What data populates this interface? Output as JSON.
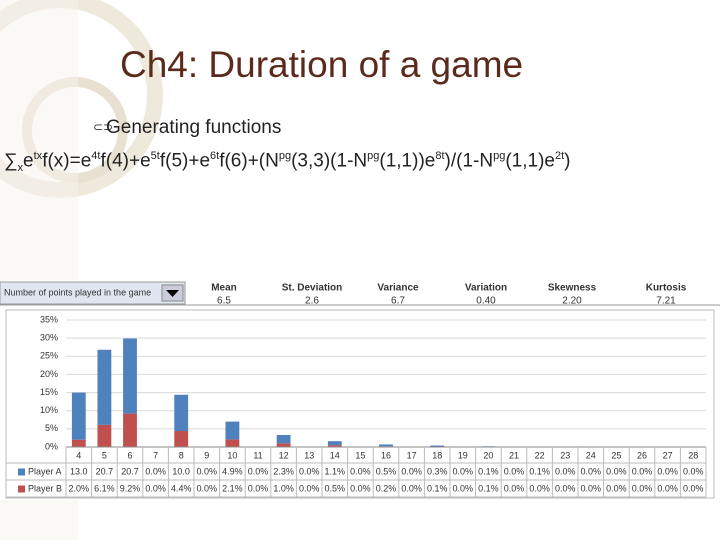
{
  "slide": {
    "title": "Ch4: Duration of a game",
    "bullet": "Generating functions",
    "formula": [
      {
        "text": "∑",
        "pos": "base"
      },
      {
        "text": "x",
        "pos": "sub"
      },
      {
        "text": "e",
        "pos": "base"
      },
      {
        "text": "tx",
        "pos": "sup"
      },
      {
        "text": "f(x)=e",
        "pos": "base"
      },
      {
        "text": "4t",
        "pos": "sup"
      },
      {
        "text": "f(4)+e",
        "pos": "base"
      },
      {
        "text": "5t",
        "pos": "sup"
      },
      {
        "text": "f(5)+e",
        "pos": "base"
      },
      {
        "text": "6t",
        "pos": "sup"
      },
      {
        "text": "f(6)+(N",
        "pos": "base"
      },
      {
        "text": "pg",
        "pos": "sup"
      },
      {
        "text": "(3,3)(1-N",
        "pos": "base"
      },
      {
        "text": "pg",
        "pos": "sup"
      },
      {
        "text": "(1,1))e",
        "pos": "base"
      },
      {
        "text": "8t",
        "pos": "sup"
      },
      {
        "text": ")/(1-N",
        "pos": "base"
      },
      {
        "text": "pg",
        "pos": "sup"
      },
      {
        "text": "(1,1)e",
        "pos": "base"
      },
      {
        "text": "2t",
        "pos": "sup"
      },
      {
        "text": ")",
        "pos": "base"
      }
    ]
  },
  "stats": {
    "dropdown": "Number of points played in the game",
    "headers": [
      "Mean",
      "St. Deviation",
      "Variance",
      "Variation",
      "Skewness",
      "Kurtosis"
    ],
    "values": [
      "6.5",
      "2.6",
      "6.7",
      "0.40",
      "2.20",
      "7.21"
    ]
  },
  "chart_data": {
    "type": "stacked_bar",
    "categories": [
      "4",
      "5",
      "6",
      "7",
      "8",
      "9",
      "10",
      "11",
      "12",
      "13",
      "14",
      "15",
      "16",
      "17",
      "18",
      "19",
      "20",
      "21",
      "22",
      "23",
      "24",
      "25",
      "26",
      "27",
      "28"
    ],
    "series": [
      {
        "name": "Player B",
        "color": "#c0504d",
        "values": [
          2.0,
          6.1,
          9.2,
          0,
          4.4,
          0,
          2.1,
          0,
          1.0,
          0,
          0.5,
          0,
          0.2,
          0,
          0.1,
          0,
          0.1,
          0,
          0,
          0,
          0,
          0,
          0,
          0,
          0
        ],
        "value_labels": [
          "2.0%",
          "6.1%",
          "9.2%",
          "0.0%",
          "4.4%",
          "0.0%",
          "2.1%",
          "0.0%",
          "1.0%",
          "0.0%",
          "0.5%",
          "0.0%",
          "0.2%",
          "0.0%",
          "0.1%",
          "0.0%",
          "0.1%",
          "0.0%",
          "0.0%",
          "0.0%",
          "0.0%",
          "0.0%",
          "0.0%",
          "0.0%",
          "0.0%"
        ]
      },
      {
        "name": "Player A",
        "color": "#4f81bd",
        "values": [
          13.0,
          20.7,
          20.7,
          0,
          10.0,
          0,
          4.9,
          0,
          2.3,
          0,
          1.1,
          0,
          0.5,
          0,
          0.3,
          0,
          0.1,
          0,
          0.1,
          0,
          0,
          0,
          0,
          0,
          0
        ],
        "value_labels": [
          "13.0",
          "20.7",
          "20.7",
          "0.0%",
          "10.0",
          "0.0%",
          "4.9%",
          "0.0%",
          "2.3%",
          "0.0%",
          "1.1%",
          "0.0%",
          "0.5%",
          "0.0%",
          "0.3%",
          "0.0%",
          "0.1%",
          "0.0%",
          "0.1%",
          "0.0%",
          "0.0%",
          "0.0%",
          "0.0%",
          "0.0%",
          "0.0%"
        ]
      }
    ],
    "ylim": [
      0,
      35
    ],
    "yticks": [
      {
        "value": 0,
        "label": "0%"
      },
      {
        "value": 5,
        "label": "5%"
      },
      {
        "value": 10,
        "label": "10%"
      },
      {
        "value": 15,
        "label": "15%"
      },
      {
        "value": 20,
        "label": "20%"
      },
      {
        "value": 25,
        "label": "25%"
      },
      {
        "value": 30,
        "label": "30%"
      },
      {
        "value": 35,
        "label": "35%"
      }
    ],
    "grid": true
  }
}
